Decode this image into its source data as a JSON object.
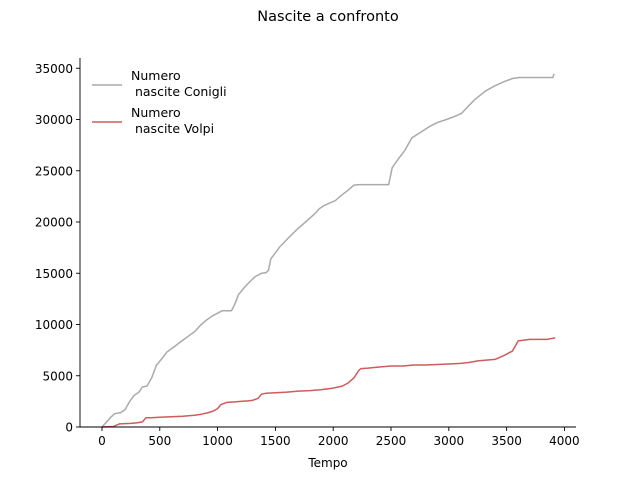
{
  "chart_data": {
    "type": "line",
    "title": "Nascite a confronto",
    "xlabel": "Tempo",
    "ylabel": "",
    "xlim": [
      -190,
      4100
    ],
    "ylim": [
      0,
      36000
    ],
    "xticks": [
      0,
      500,
      1000,
      1500,
      2000,
      2500,
      3000,
      3500,
      4000
    ],
    "yticks": [
      0,
      5000,
      10000,
      15000,
      20000,
      25000,
      30000,
      35000
    ],
    "grid": false,
    "legend_position": "top-left",
    "series": [
      {
        "name": "Numero\n nascite Conigli",
        "color": "#aaaaaa",
        "points": [
          [
            0,
            0
          ],
          [
            40,
            500
          ],
          [
            80,
            1000
          ],
          [
            110,
            1300
          ],
          [
            160,
            1400
          ],
          [
            200,
            1700
          ],
          [
            240,
            2500
          ],
          [
            280,
            3100
          ],
          [
            320,
            3400
          ],
          [
            350,
            3900
          ],
          [
            390,
            4000
          ],
          [
            430,
            4800
          ],
          [
            470,
            6000
          ],
          [
            520,
            6700
          ],
          [
            560,
            7300
          ],
          [
            620,
            7800
          ],
          [
            680,
            8300
          ],
          [
            740,
            8800
          ],
          [
            800,
            9300
          ],
          [
            850,
            9900
          ],
          [
            900,
            10400
          ],
          [
            950,
            10800
          ],
          [
            1000,
            11100
          ],
          [
            1040,
            11350
          ],
          [
            1120,
            11350
          ],
          [
            1150,
            12000
          ],
          [
            1180,
            12900
          ],
          [
            1230,
            13600
          ],
          [
            1280,
            14200
          ],
          [
            1330,
            14700
          ],
          [
            1380,
            15000
          ],
          [
            1420,
            15050
          ],
          [
            1440,
            15300
          ],
          [
            1460,
            16400
          ],
          [
            1500,
            17000
          ],
          [
            1540,
            17600
          ],
          [
            1600,
            18300
          ],
          [
            1680,
            19200
          ],
          [
            1760,
            20000
          ],
          [
            1840,
            20800
          ],
          [
            1880,
            21300
          ],
          [
            1920,
            21600
          ],
          [
            1960,
            21800
          ],
          [
            2020,
            22100
          ],
          [
            2070,
            22600
          ],
          [
            2130,
            23100
          ],
          [
            2180,
            23600
          ],
          [
            2230,
            23650
          ],
          [
            2480,
            23650
          ],
          [
            2510,
            25300
          ],
          [
            2560,
            26100
          ],
          [
            2620,
            27000
          ],
          [
            2680,
            28200
          ],
          [
            2750,
            28700
          ],
          [
            2830,
            29300
          ],
          [
            2900,
            29700
          ],
          [
            2980,
            30000
          ],
          [
            3050,
            30300
          ],
          [
            3110,
            30600
          ],
          [
            3160,
            31200
          ],
          [
            3230,
            32000
          ],
          [
            3320,
            32800
          ],
          [
            3400,
            33300
          ],
          [
            3480,
            33700
          ],
          [
            3550,
            34000
          ],
          [
            3610,
            34100
          ],
          [
            3700,
            34100
          ],
          [
            3780,
            34100
          ],
          [
            3880,
            34100
          ],
          [
            3900,
            34100
          ],
          [
            3910,
            34450
          ]
        ]
      },
      {
        "name": "Numero\n nascite Volpi",
        "color": "#cd5c5c",
        "points": [
          [
            0,
            0
          ],
          [
            100,
            50
          ],
          [
            150,
            300
          ],
          [
            200,
            330
          ],
          [
            250,
            350
          ],
          [
            300,
            400
          ],
          [
            350,
            500
          ],
          [
            380,
            900
          ],
          [
            420,
            900
          ],
          [
            500,
            950
          ],
          [
            600,
            1000
          ],
          [
            700,
            1050
          ],
          [
            800,
            1150
          ],
          [
            860,
            1250
          ],
          [
            920,
            1400
          ],
          [
            960,
            1550
          ],
          [
            1000,
            1800
          ],
          [
            1030,
            2200
          ],
          [
            1080,
            2400
          ],
          [
            1150,
            2450
          ],
          [
            1200,
            2500
          ],
          [
            1260,
            2550
          ],
          [
            1300,
            2600
          ],
          [
            1350,
            2800
          ],
          [
            1380,
            3200
          ],
          [
            1420,
            3300
          ],
          [
            1500,
            3350
          ],
          [
            1600,
            3400
          ],
          [
            1700,
            3500
          ],
          [
            1800,
            3550
          ],
          [
            1900,
            3650
          ],
          [
            2000,
            3800
          ],
          [
            2080,
            4000
          ],
          [
            2130,
            4300
          ],
          [
            2180,
            4800
          ],
          [
            2220,
            5500
          ],
          [
            2240,
            5700
          ],
          [
            2300,
            5750
          ],
          [
            2400,
            5850
          ],
          [
            2500,
            5950
          ],
          [
            2600,
            5950
          ],
          [
            2700,
            6050
          ],
          [
            2800,
            6050
          ],
          [
            2900,
            6100
          ],
          [
            3000,
            6150
          ],
          [
            3100,
            6200
          ],
          [
            3180,
            6300
          ],
          [
            3250,
            6450
          ],
          [
            3400,
            6600
          ],
          [
            3480,
            7000
          ],
          [
            3550,
            7400
          ],
          [
            3600,
            8400
          ],
          [
            3700,
            8550
          ],
          [
            3800,
            8550
          ],
          [
            3850,
            8550
          ],
          [
            3920,
            8700
          ]
        ]
      }
    ]
  }
}
